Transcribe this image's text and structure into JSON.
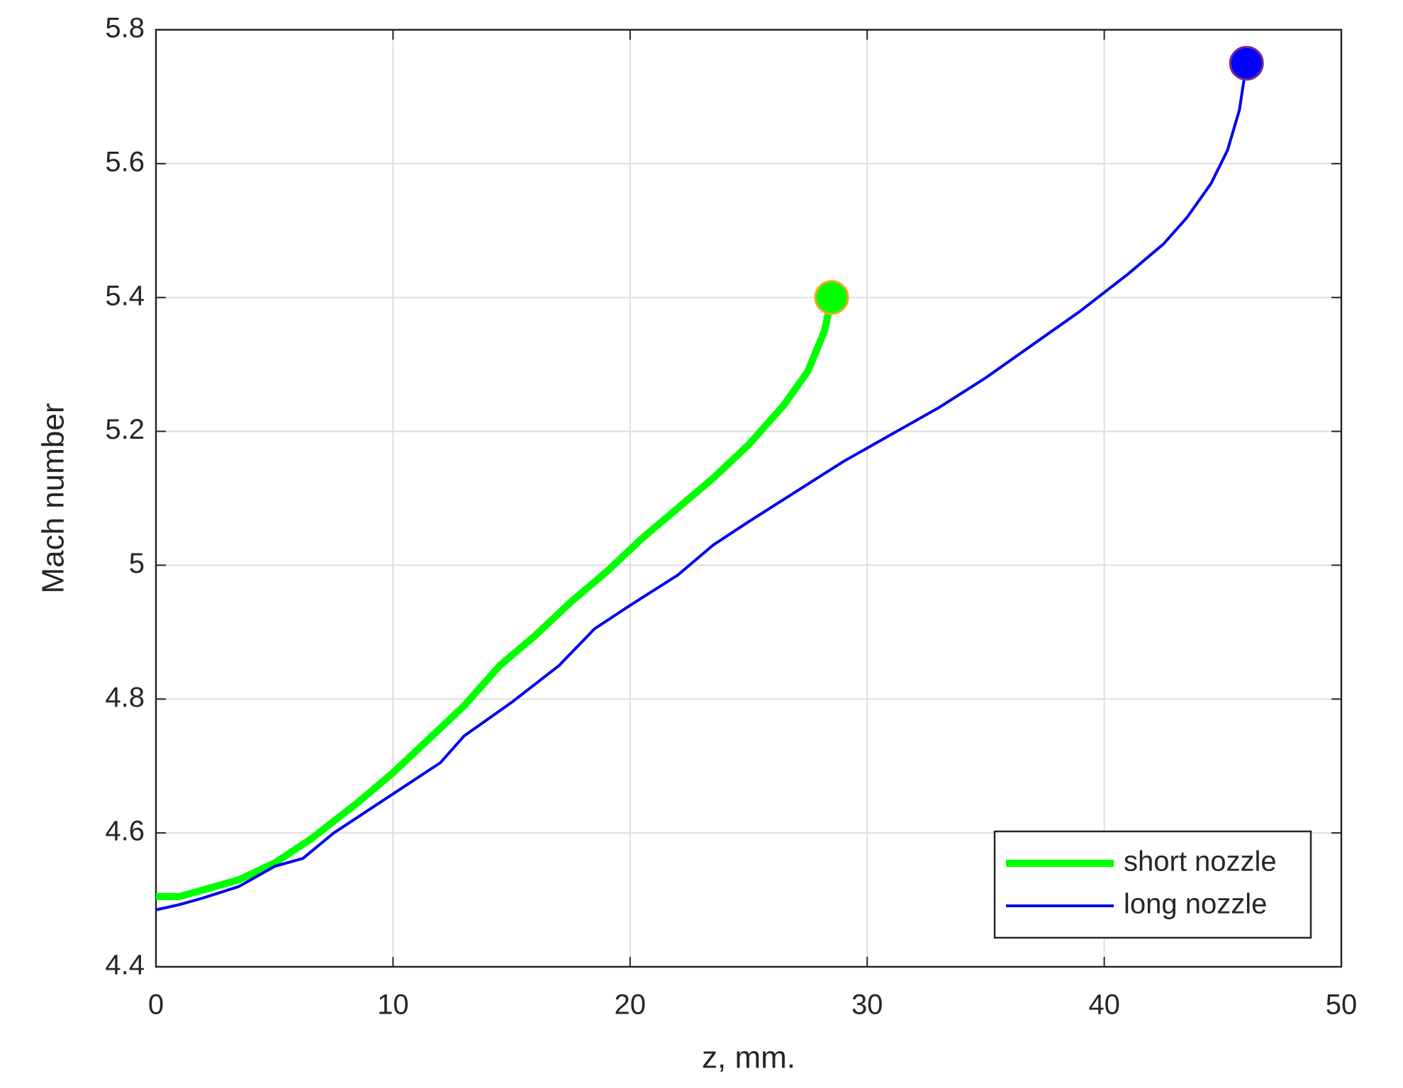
{
  "chart_data": {
    "type": "line",
    "xlabel": "z, mm.",
    "ylabel": "Mach number",
    "xlim": [
      0,
      50
    ],
    "xticks": [
      0,
      10,
      20,
      30,
      40,
      50
    ],
    "ylim": [
      4.4,
      5.8
    ],
    "yticks": [
      4.4,
      4.6,
      4.8,
      5,
      5.2,
      5.4,
      5.6,
      5.8
    ],
    "grid": true,
    "legend": "southeast",
    "series": [
      {
        "name": "short nozzle",
        "color": "#00ff00",
        "line_width": 10,
        "end_marker": true,
        "marker_face": "#00ff00",
        "marker_edge": "#f5a623",
        "x": [
          0,
          1,
          2,
          3.5,
          5,
          6.5,
          8.5,
          10,
          11.5,
          13,
          14.5,
          16,
          17.5,
          19,
          20.5,
          22,
          23.5,
          25,
          26.5,
          27.5,
          28.2,
          28.5
        ],
        "values": [
          4.505,
          4.505,
          4.515,
          4.53,
          4.555,
          4.59,
          4.645,
          4.69,
          4.74,
          4.79,
          4.85,
          4.895,
          4.945,
          4.99,
          5.04,
          5.085,
          5.13,
          5.18,
          5.24,
          5.29,
          5.35,
          5.4
        ]
      },
      {
        "name": "long nozzle",
        "color": "#0000ee",
        "line_width": 4,
        "end_marker": true,
        "marker_face": "#0000ff",
        "marker_edge": "#7b2d8b",
        "x": [
          0,
          1,
          2,
          3.5,
          5,
          6.2,
          7.5,
          9,
          10.5,
          12,
          13,
          15,
          17,
          18.5,
          20,
          22,
          23.5,
          25,
          27,
          29,
          31,
          33,
          35,
          37,
          39,
          41,
          42.5,
          43.5,
          44.5,
          45.2,
          45.7,
          46
        ],
        "values": [
          4.485,
          4.493,
          4.503,
          4.52,
          4.55,
          4.562,
          4.6,
          4.635,
          4.67,
          4.705,
          4.745,
          4.795,
          4.85,
          4.905,
          4.94,
          4.985,
          5.03,
          5.065,
          5.11,
          5.155,
          5.195,
          5.235,
          5.28,
          5.33,
          5.38,
          5.435,
          5.48,
          5.52,
          5.57,
          5.62,
          5.68,
          5.75
        ]
      }
    ]
  }
}
